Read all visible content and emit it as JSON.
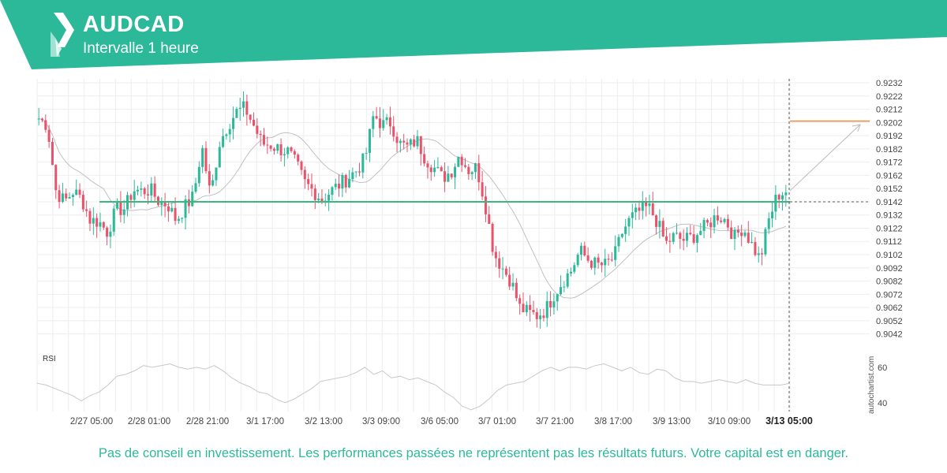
{
  "header": {
    "symbol": "AUDCAD",
    "interval": "Intervalle 1 heure",
    "colors": {
      "band": "#2bb99a",
      "band_light": "#5fcbb3"
    }
  },
  "chart_data": {
    "type": "candlestick",
    "price_axis": {
      "min": 0.9037,
      "max": 0.9235,
      "ticks": [
        "0.9232",
        "0.9222",
        "0.9212",
        "0.9202",
        "0.9192",
        "0.9182",
        "0.9172",
        "0.9162",
        "0.9152",
        "0.9142",
        "0.9132",
        "0.9122",
        "0.9112",
        "0.9102",
        "0.9092",
        "0.9082",
        "0.9072",
        "0.9062",
        "0.9052",
        "0.9042"
      ]
    },
    "time_labels": [
      "2/27 05:00",
      "2/28 01:00",
      "2/28 21:00",
      "3/1 17:00",
      "3/2 13:00",
      "3/3 09:00",
      "3/6 05:00",
      "3/7 01:00",
      "3/7 21:00",
      "3/8 17:00",
      "3/9 13:00",
      "3/10 09:00"
    ],
    "current_time_label": "3/13 05:00",
    "support_level": 0.9142,
    "target_level": 0.9203,
    "price_path": [
      [
        0.9205,
        0.92,
        0.915,
        0.9142,
        0.915,
        0.9144,
        0.9128,
        0.9127,
        0.9119,
        0.9136,
        0.9137,
        0.9151,
        0.915,
        0.9151,
        0.9142,
        0.914,
        0.9128,
        0.9138,
        0.9146,
        0.9184,
        0.9146,
        0.9186,
        0.92,
        0.921,
        0.9213,
        0.92,
        0.9186,
        0.9185,
        0.9182,
        0.918,
        0.917,
        0.9156,
        0.915,
        0.9144,
        0.915,
        0.9155,
        0.916,
        0.9166,
        0.9175,
        0.9208,
        0.92,
        0.9202,
        0.9186,
        0.9183,
        0.9189,
        0.9175,
        0.9168,
        0.916,
        0.9165,
        0.9178,
        0.9166,
        0.9168,
        0.914,
        0.9103,
        0.9092,
        0.9082,
        0.9062,
        0.9058,
        0.9056,
        0.906,
        0.9072,
        0.9082,
        0.909,
        0.9105,
        0.9098,
        0.9094,
        0.9094,
        0.91,
        0.912,
        0.913,
        0.9135,
        0.9138,
        0.9127,
        0.911,
        0.9116,
        0.9113,
        0.9115,
        0.912,
        0.9125,
        0.9132,
        0.9128,
        0.9115,
        0.9123,
        0.911,
        0.9098,
        0.9128,
        0.9147,
        0.915
      ]
    ],
    "rsi": {
      "label": "RSI",
      "ticks": [
        "60",
        "40"
      ],
      "min": 35,
      "max": 68,
      "values": [
        51,
        50,
        48,
        46,
        44,
        41,
        44,
        46,
        50,
        55,
        56,
        58,
        61,
        60,
        61,
        62,
        60,
        59,
        60,
        59,
        61,
        58,
        54,
        51,
        49,
        46,
        45,
        42,
        40,
        42,
        45,
        48,
        52,
        53,
        54,
        55,
        57,
        60,
        56,
        58,
        54,
        55,
        53,
        54,
        52,
        50,
        46,
        43,
        38,
        36,
        38,
        42,
        47,
        50,
        51,
        52,
        55,
        58,
        60,
        58,
        60,
        60,
        59,
        61,
        62,
        60,
        58,
        60,
        57,
        56,
        59,
        58,
        54,
        52,
        52,
        51,
        52,
        53,
        52,
        51,
        53,
        51,
        50,
        50,
        50,
        51
      ]
    },
    "watermark": "autochartist.com",
    "colors": {
      "up": "#2bb99a",
      "down": "#e8536b",
      "sma": "#c0c0c0",
      "support": "#3ab77d",
      "target": "#ef8a3a",
      "grid": "#eeeeee",
      "axis_text": "#444444"
    }
  },
  "disclaimer": "Pas de conseil en investissement. Les performances passées ne représentent pas les résultats futurs. Votre capital est en danger."
}
